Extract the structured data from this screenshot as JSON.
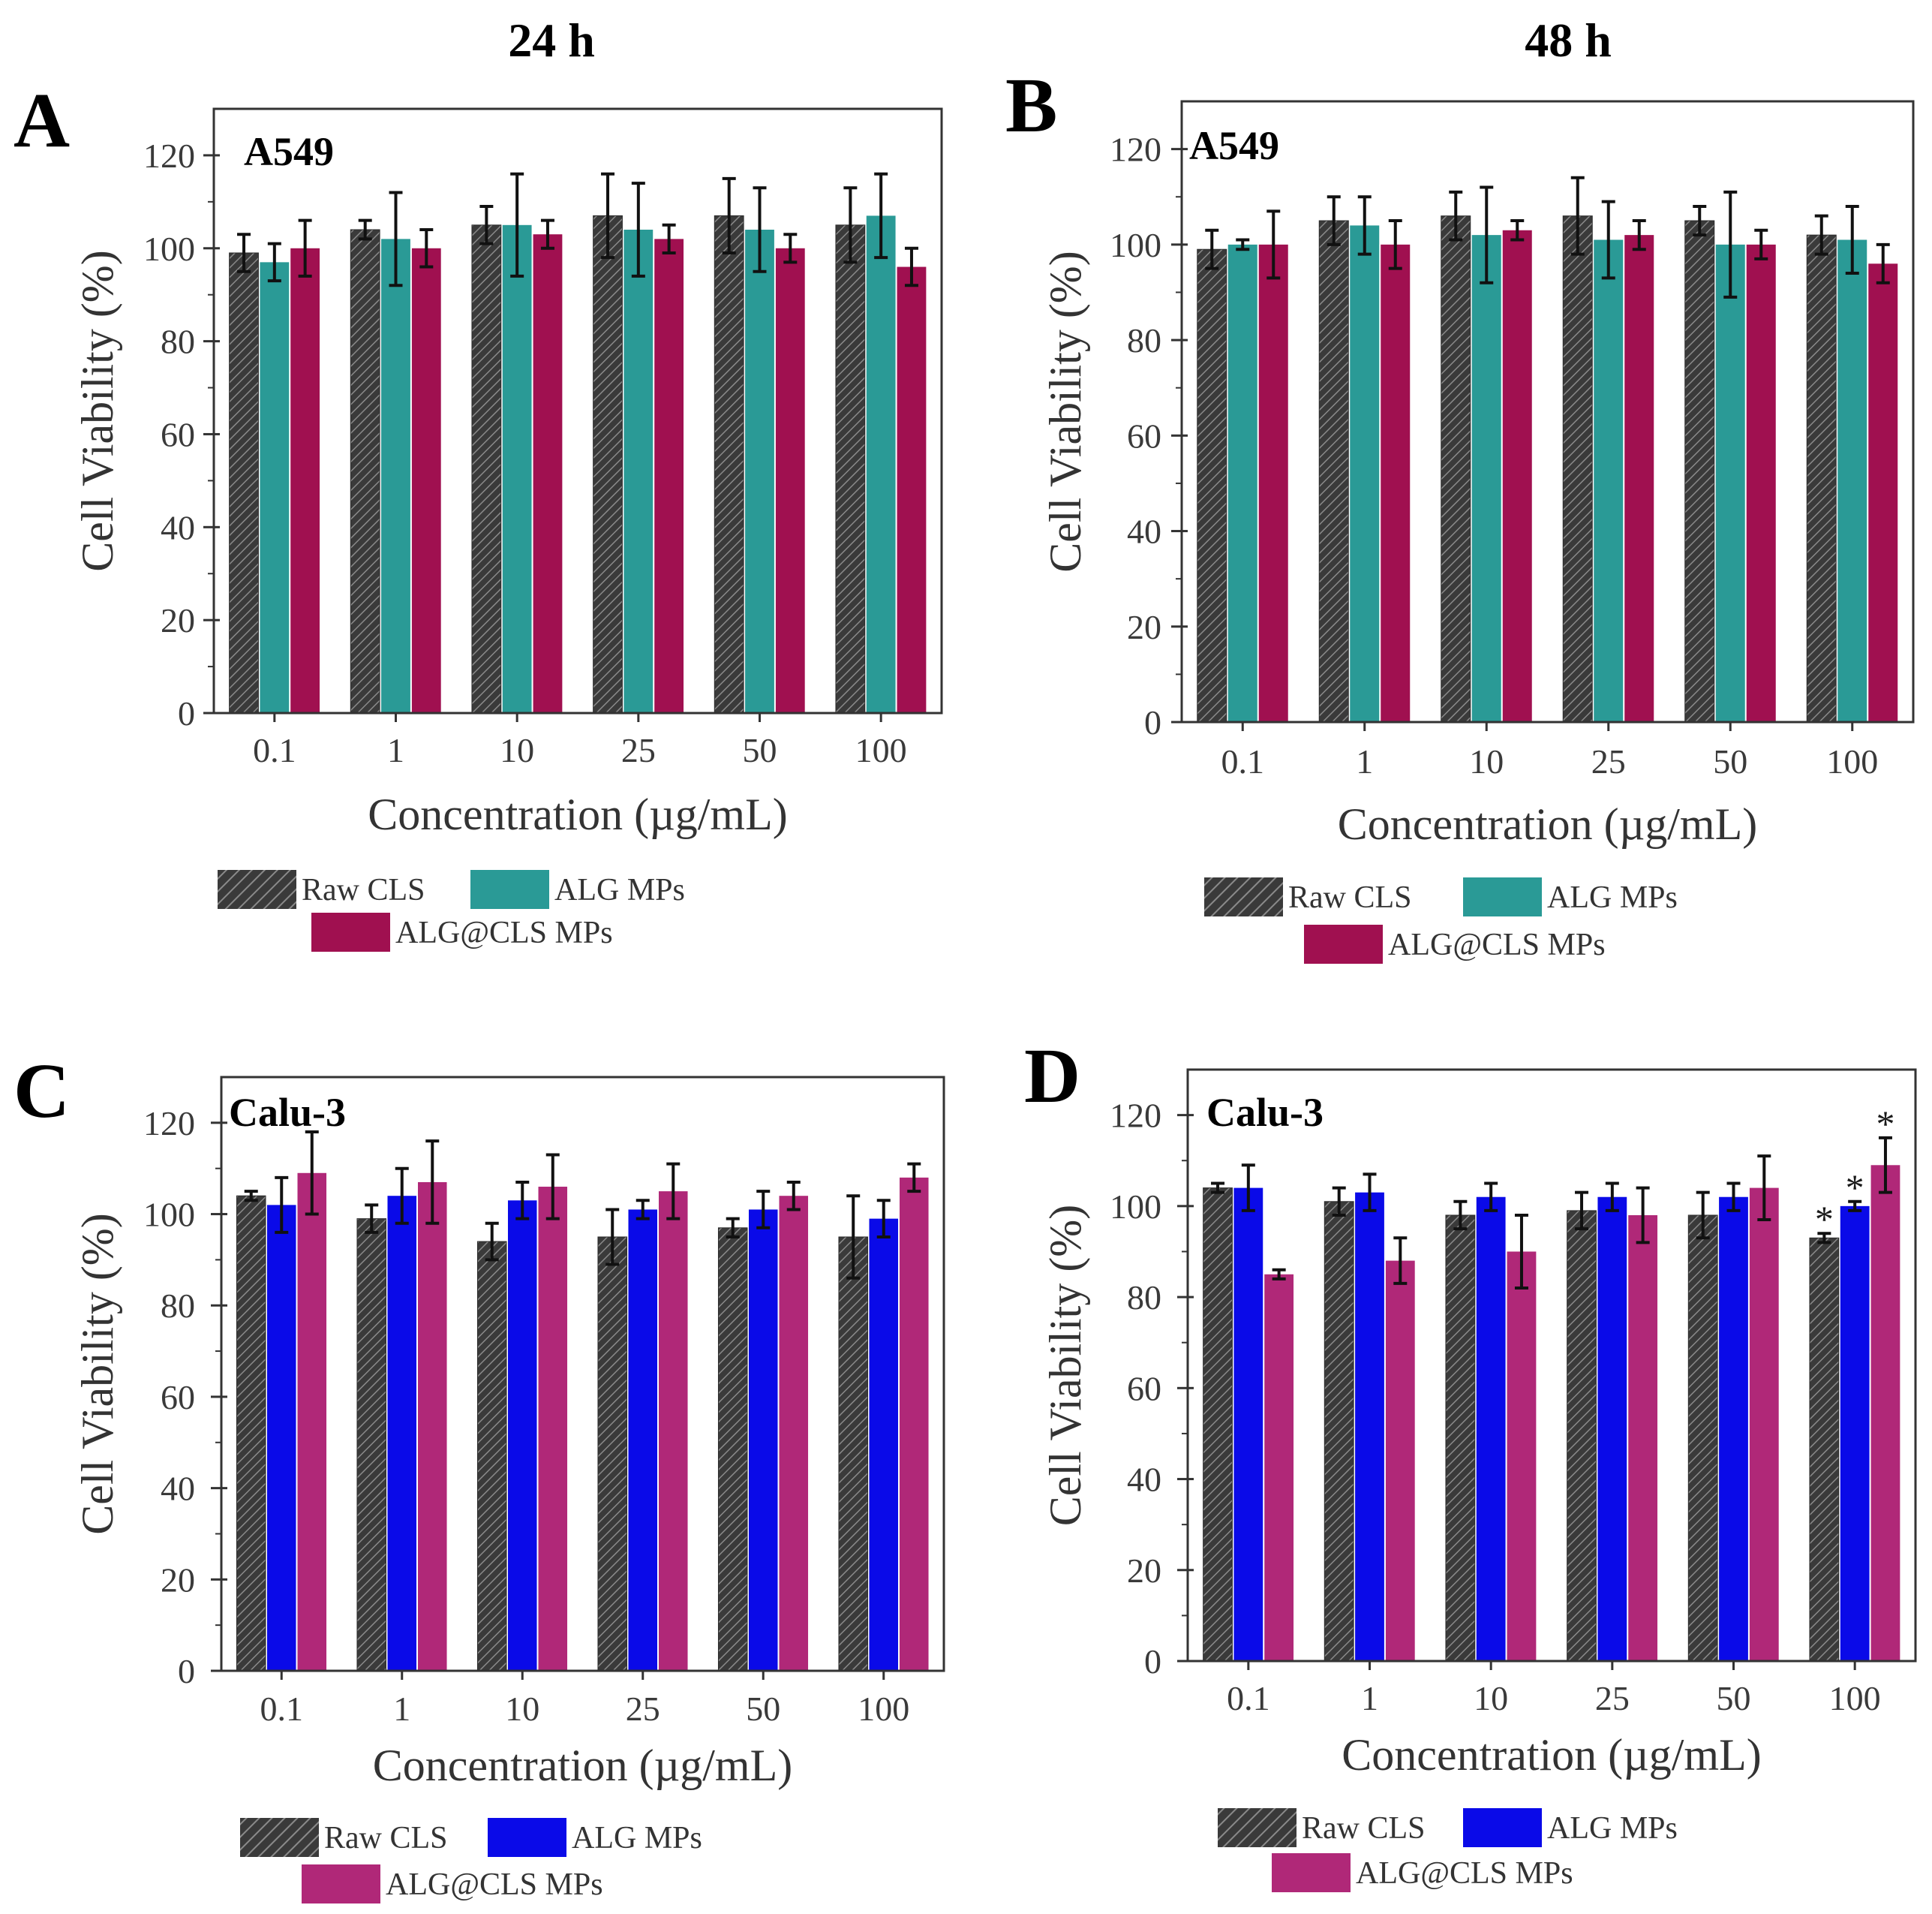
{
  "figure": {
    "time_labels": [
      "24 h",
      "48 h"
    ]
  },
  "chart_data": [
    {
      "panel": "A",
      "time": "24 h",
      "cell_line": "A549",
      "type": "bar",
      "categories": [
        "0.1",
        "1",
        "10",
        "25",
        "50",
        "100"
      ],
      "xlabel": "Concentration (µg/mL)",
      "ylabel": "Cell Viability (%)",
      "ylim": [
        0,
        130
      ],
      "yticks": [
        0,
        20,
        40,
        60,
        80,
        100,
        120
      ],
      "legend": [
        "Raw CLS",
        "ALG MPs",
        "ALG@CLS MPs"
      ],
      "colors": [
        "#4a4a4a",
        "#2a9a96",
        "#a01050"
      ],
      "series": [
        {
          "name": "Raw CLS",
          "values": [
            99,
            104,
            105,
            107,
            107,
            105
          ],
          "errors": [
            4,
            2,
            4,
            9,
            8,
            8
          ]
        },
        {
          "name": "ALG MPs",
          "values": [
            97,
            102,
            105,
            104,
            104,
            107
          ],
          "errors": [
            4,
            10,
            11,
            10,
            9,
            9
          ]
        },
        {
          "name": "ALG@CLS MPs",
          "values": [
            100,
            100,
            103,
            102,
            100,
            96
          ],
          "errors": [
            6,
            4,
            3,
            3,
            3,
            4
          ]
        }
      ],
      "annotations": []
    },
    {
      "panel": "B",
      "time": "48 h",
      "cell_line": "A549",
      "type": "bar",
      "categories": [
        "0.1",
        "1",
        "10",
        "25",
        "50",
        "100"
      ],
      "xlabel": "Concentration (µg/mL)",
      "ylabel": "Cell Viability (%)",
      "ylim": [
        0,
        130
      ],
      "yticks": [
        0,
        20,
        40,
        60,
        80,
        100,
        120
      ],
      "legend": [
        "Raw CLS",
        "ALG MPs",
        "ALG@CLS MPs"
      ],
      "colors": [
        "#4a4a4a",
        "#2a9a96",
        "#a01050"
      ],
      "series": [
        {
          "name": "Raw CLS",
          "values": [
            99,
            105,
            106,
            106,
            105,
            102
          ],
          "errors": [
            4,
            5,
            5,
            8,
            3,
            4
          ]
        },
        {
          "name": "ALG MPs",
          "values": [
            100,
            104,
            102,
            101,
            100,
            101
          ],
          "errors": [
            1,
            6,
            10,
            8,
            11,
            7
          ]
        },
        {
          "name": "ALG@CLS MPs",
          "values": [
            100,
            100,
            103,
            102,
            100,
            96
          ],
          "errors": [
            7,
            5,
            2,
            3,
            3,
            4
          ]
        }
      ],
      "annotations": []
    },
    {
      "panel": "C",
      "time": "24 h",
      "cell_line": "Calu-3",
      "type": "bar",
      "categories": [
        "0.1",
        "1",
        "10",
        "25",
        "50",
        "100"
      ],
      "xlabel": "Concentration (µg/mL)",
      "ylabel": "Cell Viability (%)",
      "ylim": [
        0,
        130
      ],
      "yticks": [
        0,
        20,
        40,
        60,
        80,
        100,
        120
      ],
      "legend": [
        "Raw CLS",
        "ALG MPs",
        "ALG@CLS MPs"
      ],
      "colors": [
        "#4a4a4a",
        "#0a0ae8",
        "#b02878"
      ],
      "series": [
        {
          "name": "Raw CLS",
          "values": [
            104,
            99,
            94,
            95,
            97,
            95
          ],
          "errors": [
            1,
            3,
            4,
            6,
            2,
            9
          ]
        },
        {
          "name": "ALG MPs",
          "values": [
            102,
            104,
            103,
            101,
            101,
            99
          ],
          "errors": [
            6,
            6,
            4,
            2,
            4,
            4
          ]
        },
        {
          "name": "ALG@CLS MPs",
          "values": [
            109,
            107,
            106,
            105,
            104,
            108
          ],
          "errors": [
            9,
            9,
            7,
            6,
            3,
            3
          ]
        }
      ],
      "annotations": []
    },
    {
      "panel": "D",
      "time": "48 h",
      "cell_line": "Calu-3",
      "type": "bar",
      "categories": [
        "0.1",
        "1",
        "10",
        "25",
        "50",
        "100"
      ],
      "xlabel": "Concentration (µg/mL)",
      "ylabel": "Cell Viability (%)",
      "ylim": [
        0,
        130
      ],
      "yticks": [
        0,
        20,
        40,
        60,
        80,
        100,
        120
      ],
      "legend": [
        "Raw CLS",
        "ALG MPs",
        "ALG@CLS MPs"
      ],
      "colors": [
        "#4a4a4a",
        "#0a0ae8",
        "#b02878"
      ],
      "series": [
        {
          "name": "Raw CLS",
          "values": [
            104,
            101,
            98,
            99,
            98,
            93
          ],
          "errors": [
            1,
            3,
            3,
            4,
            5,
            1
          ]
        },
        {
          "name": "ALG MPs",
          "values": [
            104,
            103,
            102,
            102,
            102,
            100
          ],
          "errors": [
            5,
            4,
            3,
            3,
            3,
            1
          ]
        },
        {
          "name": "ALG@CLS MPs",
          "values": [
            85,
            88,
            90,
            98,
            104,
            109
          ],
          "errors": [
            1,
            5,
            8,
            6,
            7,
            6
          ]
        }
      ],
      "annotations": [
        {
          "category": "100",
          "series": "Raw CLS",
          "text": "*"
        },
        {
          "category": "100",
          "series": "ALG MPs",
          "text": "*"
        },
        {
          "category": "100",
          "series": "ALG@CLS MPs",
          "text": "*"
        }
      ]
    }
  ]
}
